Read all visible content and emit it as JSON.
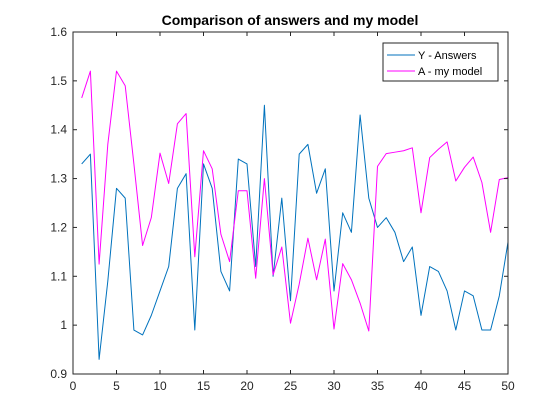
{
  "chart_data": {
    "type": "line",
    "title": "Comparison of answers and my model",
    "xlabel": "",
    "ylabel": "",
    "xlim": [
      0,
      50
    ],
    "ylim": [
      0.9,
      1.6
    ],
    "xticks": [
      0,
      5,
      10,
      15,
      20,
      25,
      30,
      35,
      40,
      45,
      50
    ],
    "yticks": [
      0.9,
      1,
      1.1,
      1.2,
      1.3,
      1.4,
      1.5,
      1.6
    ],
    "xtick_labels": [
      "0",
      "5",
      "10",
      "15",
      "20",
      "25",
      "30",
      "35",
      "40",
      "45",
      "50"
    ],
    "ytick_labels": [
      "0.9",
      "1",
      "1.1",
      "1.2",
      "1.3",
      "1.4",
      "1.5",
      "1.6"
    ],
    "grid": false,
    "legend_position": "top-right",
    "x": [
      1,
      2,
      3,
      4,
      5,
      6,
      7,
      8,
      9,
      10,
      11,
      12,
      13,
      14,
      15,
      16,
      17,
      18,
      19,
      20,
      21,
      22,
      23,
      24,
      25,
      26,
      27,
      28,
      29,
      30,
      31,
      32,
      33,
      34,
      35,
      36,
      37,
      38,
      39,
      40,
      41,
      42,
      43,
      44,
      45,
      46,
      47,
      48,
      49,
      50
    ],
    "series": [
      {
        "name": "Y - Answers",
        "color": "#0072BD",
        "values": [
          1.33,
          1.35,
          0.93,
          1.09,
          1.28,
          1.26,
          0.99,
          0.98,
          1.02,
          1.07,
          1.12,
          1.28,
          1.31,
          0.99,
          1.33,
          1.28,
          1.11,
          1.07,
          1.34,
          1.33,
          1.12,
          1.45,
          1.1,
          1.26,
          1.05,
          1.35,
          1.37,
          1.27,
          1.32,
          1.07,
          1.23,
          1.19,
          1.43,
          1.26,
          1.2,
          1.22,
          1.19,
          1.13,
          1.16,
          1.02,
          1.12,
          1.11,
          1.07,
          0.99,
          1.07,
          1.06,
          0.99,
          0.99,
          1.06,
          1.17
        ]
      },
      {
        "name": "A - my model",
        "color": "#FF00FF",
        "values": [
          1.465,
          1.52,
          1.125,
          1.37,
          1.52,
          1.49,
          1.33,
          1.163,
          1.22,
          1.352,
          1.29,
          1.412,
          1.433,
          1.14,
          1.357,
          1.32,
          1.186,
          1.13,
          1.275,
          1.275,
          1.096,
          1.3,
          1.103,
          1.16,
          1.004,
          1.084,
          1.178,
          1.093,
          1.176,
          0.992,
          1.126,
          1.093,
          1.045,
          0.988,
          1.325,
          1.351,
          1.354,
          1.357,
          1.363,
          1.23,
          1.343,
          1.36,
          1.375,
          1.295,
          1.323,
          1.344,
          1.292,
          1.19,
          1.298,
          1.302
        ]
      }
    ]
  }
}
